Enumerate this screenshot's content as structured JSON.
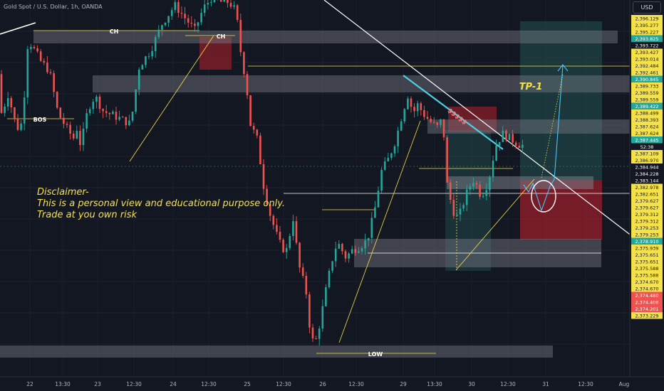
{
  "symbol_title": "Gold Spot / U.S. Dollar, 1h, OANDA",
  "currency_button": "USD",
  "disclaimer": {
    "line1": "Disclaimer-",
    "line2": "This is a personal view and educational purpose only.",
    "line3": "Trade at you own risk"
  },
  "annotations": {
    "ch_1": "CH",
    "ch_2": "CH",
    "bos": "BOS",
    "low": "LOW",
    "tp1": "TP-1",
    "liquidity": "$$$$$"
  },
  "colors": {
    "background": "#131722",
    "bull_candle": "#26a69a",
    "bear_candle": "#ef5350",
    "price_axis_tag": "#f5e14a",
    "highlight_tag": "#26a69a",
    "stop_zone": "#b2202c",
    "target_zone": "#2a6b64",
    "zone_gray": "#787b86"
  },
  "time_axis_labels": [
    "22",
    "13:30",
    "23",
    "12:30",
    "24",
    "12:30",
    "25",
    "12:30",
    "26",
    "12:30",
    "29",
    "13:30",
    "30",
    "12:30",
    "31",
    "12:30",
    "Aug"
  ],
  "price_axis_labels": [
    "2,396.129",
    "2,395.277",
    "2,395.227",
    "2,393.825",
    "2,393.722",
    "2,393.427",
    "2,393.014",
    "2,392.484",
    "2,392.461",
    "2,390.845",
    "2,389.733",
    "2,389.559",
    "2,389.559",
    "2,389.422",
    "2,388.499",
    "2,388.393",
    "2,387.624",
    "2,387.624",
    "2,387.445",
    "52:38",
    "2,387.109",
    "2,386.970",
    "2,384.944",
    "2,384.228",
    "2,383.144",
    "2,382.978",
    "2,382.651",
    "2,379.627",
    "2,379.627",
    "2,379.312",
    "2,379.312",
    "2,379.253",
    "2,379.253",
    "2,378.910",
    "2,375.939",
    "2,375.651",
    "2,375.651",
    "2,375.588",
    "2,375.588",
    "2,374.670",
    "2,374.670",
    "2,374.480",
    "2,374.406",
    "2,374.201",
    "2,373.229"
  ],
  "chart_data": {
    "type": "candlestick",
    "title": "Gold Spot / U.S. Dollar, 1h, OANDA",
    "xlabel": "",
    "ylabel": "USD",
    "timeframe": "1h",
    "ylim": [
      2373.0,
      2396.5
    ],
    "current_price": 2387.445,
    "countdown": "52:38",
    "x_ticks": [
      "22",
      "13:30",
      "23",
      "12:30",
      "24",
      "12:30",
      "25",
      "12:30",
      "26",
      "12:30",
      "29",
      "13:30",
      "30",
      "12:30",
      "31",
      "12:30",
      "Aug"
    ],
    "waypoints": [
      [
        0,
        2392.0
      ],
      [
        8,
        2389.0
      ],
      [
        14,
        2391.0
      ],
      [
        20,
        2390.0
      ],
      [
        28,
        2388.5
      ],
      [
        36,
        2388.9
      ],
      [
        44,
        2394.2
      ],
      [
        52,
        2393.6
      ],
      [
        62,
        2392.8
      ],
      [
        74,
        2392.2
      ],
      [
        86,
        2389.5
      ],
      [
        100,
        2388.4
      ],
      [
        108,
        2387.9
      ],
      [
        112,
        2388.6
      ],
      [
        118,
        2387.4
      ],
      [
        128,
        2389.8
      ],
      [
        138,
        2390.6
      ],
      [
        150,
        2389.6
      ],
      [
        162,
        2389.4
      ],
      [
        176,
        2389.1
      ],
      [
        188,
        2388.8
      ],
      [
        200,
        2392.5
      ],
      [
        216,
        2393.5
      ],
      [
        232,
        2395.2
      ],
      [
        250,
        2396.4
      ],
      [
        264,
        2395.6
      ],
      [
        278,
        2394.8
      ],
      [
        290,
        2396.2
      ],
      [
        302,
        2396.9
      ],
      [
        314,
        2396.6
      ],
      [
        326,
        2396.6
      ],
      [
        336,
        2396.0
      ],
      [
        343,
        2393.2
      ],
      [
        350,
        2391.5
      ],
      [
        356,
        2388.8
      ],
      [
        366,
        2387.8
      ],
      [
        374,
        2385.0
      ],
      [
        384,
        2383.0
      ],
      [
        396,
        2381.3
      ],
      [
        406,
        2380.6
      ],
      [
        416,
        2382.8
      ],
      [
        424,
        2379.8
      ],
      [
        434,
        2378.2
      ],
      [
        440,
        2375.6
      ],
      [
        446,
        2374.6
      ],
      [
        454,
        2376.2
      ],
      [
        462,
        2378.2
      ],
      [
        470,
        2380.0
      ],
      [
        478,
        2381.3
      ],
      [
        490,
        2380.3
      ],
      [
        500,
        2380.8
      ],
      [
        510,
        2381.0
      ],
      [
        520,
        2381.4
      ],
      [
        530,
        2383.2
      ],
      [
        540,
        2385.8
      ],
      [
        550,
        2386.6
      ],
      [
        560,
        2387.8
      ],
      [
        570,
        2389.6
      ],
      [
        578,
        2390.8
      ],
      [
        584,
        2389.4
      ],
      [
        590,
        2390.1
      ],
      [
        600,
        2389.4
      ],
      [
        610,
        2388.9
      ],
      [
        618,
        2388.6
      ],
      [
        626,
        2389.2
      ],
      [
        632,
        2385.0
      ],
      [
        640,
        2383.3
      ],
      [
        648,
        2382.8
      ],
      [
        656,
        2383.9
      ],
      [
        662,
        2384.7
      ],
      [
        670,
        2385.3
      ],
      [
        680,
        2384.2
      ],
      [
        690,
        2385.1
      ],
      [
        700,
        2387.4
      ],
      [
        710,
        2388.2
      ],
      [
        720,
        2387.9
      ],
      [
        730,
        2387.6
      ],
      [
        736,
        2387.45
      ]
    ],
    "price_lines": [
      2393.427,
      2386.97,
      2387.445
    ],
    "zones": [
      {
        "label": "CH",
        "low": 2394.3,
        "high": 2394.9
      },
      {
        "label": "",
        "low": 2391.6,
        "high": 2392.5
      },
      {
        "label": "",
        "low": 2388.6,
        "high": 2389.1
      },
      {
        "label": "",
        "low": 2386.5,
        "high": 2387.1
      },
      {
        "label": "",
        "low": 2379.4,
        "high": 2380.6
      },
      {
        "label": "LOW",
        "low": 2373.2,
        "high": 2373.9
      }
    ],
    "levels": [
      {
        "label": "BOS",
        "price": 2389.0
      },
      {
        "label": "LOW",
        "price": 2373.7
      }
    ],
    "trade_setup": {
      "target_label": "TP-1",
      "target": 2396.129,
      "entry": 2387.109,
      "stop": 2382.978
    }
  }
}
